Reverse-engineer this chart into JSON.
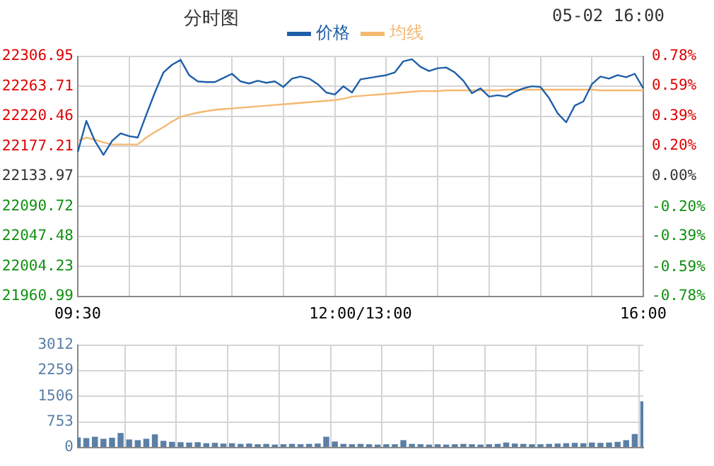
{
  "chart_data": [
    {
      "type": "line",
      "title": "分时图",
      "annotations": [
        "05-02 16:00"
      ],
      "legend": "top",
      "grid": true,
      "marker": "none",
      "line_style": "solid",
      "categories": [
        "09:30",
        null,
        null,
        null,
        null,
        null,
        null,
        null,
        null,
        null,
        null,
        null,
        null,
        null,
        null,
        null,
        null,
        null,
        null,
        null,
        null,
        null,
        null,
        null,
        null,
        null,
        null,
        null,
        null,
        null,
        null,
        null,
        null,
        "12:00/13:00",
        null,
        null,
        null,
        null,
        null,
        null,
        null,
        null,
        null,
        null,
        null,
        null,
        null,
        null,
        null,
        null,
        null,
        null,
        null,
        null,
        null,
        null,
        null,
        null,
        null,
        null,
        null,
        null,
        null,
        null,
        null,
        null,
        "16:00"
      ],
      "ylim": [
        21960.99,
        22306.95
      ],
      "yticks": [
        21960.99,
        22004.23,
        22047.48,
        22090.72,
        22133.97,
        22177.21,
        22220.46,
        22263.71,
        22306.95
      ],
      "y2lim": [
        -0.78,
        0.78
      ],
      "y2ticks": [
        {
          "value": -0.78,
          "label": "-0.78%"
        },
        {
          "value": -0.59,
          "label": "-0.59%"
        },
        {
          "value": -0.39,
          "label": "-0.39%"
        },
        {
          "value": -0.2,
          "label": "-0.20%"
        },
        {
          "value": 0,
          "label": "0.00%"
        },
        {
          "value": 0.2,
          "label": "0.20%"
        },
        {
          "value": 0.39,
          "label": "0.39%"
        },
        {
          "value": 0.59,
          "label": "0.59%"
        },
        {
          "value": 0.78,
          "label": "0.78%"
        }
      ],
      "series": [
        {
          "name": "价格",
          "color": "#1f5fa8",
          "values": [
            22169,
            22214,
            22185,
            22165,
            22185,
            22196,
            22192,
            22190,
            22223,
            22255,
            22284,
            22295,
            22302,
            22280,
            22271,
            22270,
            22270,
            22276,
            22282,
            22271,
            22268,
            22272,
            22269,
            22271,
            22263,
            22275,
            22278,
            22275,
            22267,
            22255,
            22252,
            22264,
            22255,
            22274,
            22276,
            22278,
            22280,
            22284,
            22300,
            22303,
            22292,
            22286,
            22290,
            22291,
            22284,
            22272,
            22254,
            22261,
            22249,
            22251,
            22249,
            22256,
            22261,
            22264,
            22263,
            22247,
            22225,
            22212,
            22236,
            22242,
            22267,
            22278,
            22275,
            22280,
            22277,
            22282,
            22261
          ]
        },
        {
          "name": "均线",
          "color": "#f5b870",
          "values": [
            22185,
            22190,
            22187,
            22183,
            22180,
            22180,
            22180,
            22180,
            22190,
            22198,
            22205,
            22213,
            22220,
            22223,
            22226,
            22228,
            22230,
            22231,
            22232,
            22233,
            22234,
            22235,
            22236,
            22237,
            22238,
            22239,
            22240,
            22241,
            22242,
            22243,
            22244,
            22246,
            22249,
            22250,
            22251,
            22252,
            22253,
            22254,
            22255,
            22256,
            22257,
            22257,
            22257,
            22258,
            22258,
            22258,
            22258,
            22258,
            22258,
            22258,
            22259,
            22259,
            22259,
            22259,
            22259,
            22259,
            22259,
            22259,
            22259,
            22259,
            22259,
            22258,
            22258,
            22258,
            22258,
            22258,
            22258
          ]
        }
      ]
    },
    {
      "type": "bar",
      "color": "#5b7fa6",
      "grid": true,
      "tick_labels": "y",
      "categories": [
        null,
        null,
        null,
        null,
        null,
        null,
        null,
        null,
        null,
        null,
        null,
        null,
        null,
        null,
        null,
        null,
        null,
        null,
        null,
        null,
        null,
        null,
        null,
        null,
        null,
        null,
        null,
        null,
        null,
        null,
        null,
        null,
        null,
        null,
        null,
        null,
        null,
        null,
        null,
        null,
        null,
        null,
        null,
        null,
        null,
        null,
        null,
        null,
        null,
        null,
        null,
        null,
        null,
        null,
        null,
        null,
        null,
        null,
        null,
        null,
        null,
        null,
        null,
        null,
        null,
        null,
        null
      ],
      "ylim": [
        0,
        3012
      ],
      "yticks": [
        0,
        753,
        1506,
        2259,
        3012
      ],
      "values": [
        300,
        280,
        320,
        260,
        290,
        430,
        240,
        220,
        260,
        390,
        200,
        170,
        160,
        150,
        160,
        130,
        140,
        120,
        130,
        110,
        120,
        100,
        110,
        90,
        100,
        110,
        100,
        110,
        120,
        320,
        180,
        110,
        100,
        110,
        100,
        90,
        100,
        100,
        220,
        110,
        100,
        90,
        100,
        90,
        100,
        110,
        100,
        90,
        100,
        110,
        150,
        120,
        110,
        100,
        100,
        110,
        120,
        130,
        140,
        130,
        150,
        140,
        150,
        170,
        220,
        400,
        1360
      ]
    }
  ]
}
